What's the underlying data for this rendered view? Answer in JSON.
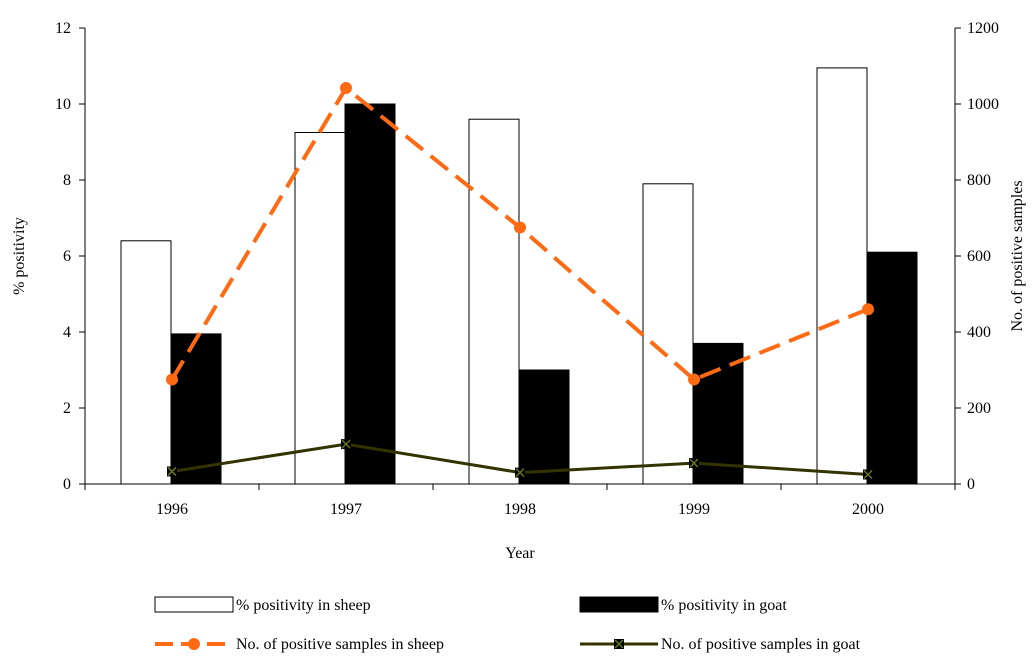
{
  "chart_data": {
    "type": "bar",
    "categories": [
      "1996",
      "1997",
      "1998",
      "1999",
      "2000"
    ],
    "xlabel": "Year",
    "ylabel": "% positivity",
    "y2label": "No. of positive samples",
    "ylim": [
      0,
      12
    ],
    "yticks": [
      0,
      2,
      4,
      6,
      8,
      10,
      12
    ],
    "y2lim": [
      0,
      1200
    ],
    "y2ticks": [
      0,
      200,
      400,
      600,
      800,
      1000,
      1200
    ],
    "grid": false,
    "legend_position": "bottom",
    "bar_series": [
      {
        "name": "% positivity in sheep",
        "values": [
          6.4,
          9.25,
          9.6,
          7.9,
          10.95
        ],
        "axis": "left",
        "fill": "#ffffff",
        "stroke": "#000000"
      },
      {
        "name": "% positivity in goat",
        "values": [
          3.95,
          10.0,
          3.0,
          3.7,
          6.1
        ],
        "axis": "left",
        "fill": "#000000",
        "stroke": "#000000"
      }
    ],
    "line_series": [
      {
        "name": "No. of positive samples in sheep",
        "values": [
          275,
          1042,
          675,
          275,
          460
        ],
        "axis": "right",
        "color": "#ff6a13",
        "dash": true,
        "marker": "circle"
      },
      {
        "name": "No. of positive samples in goat",
        "values": [
          33,
          105,
          30,
          55,
          25
        ],
        "axis": "right",
        "color": "#333300",
        "dash": false,
        "marker": "x-square"
      }
    ]
  }
}
